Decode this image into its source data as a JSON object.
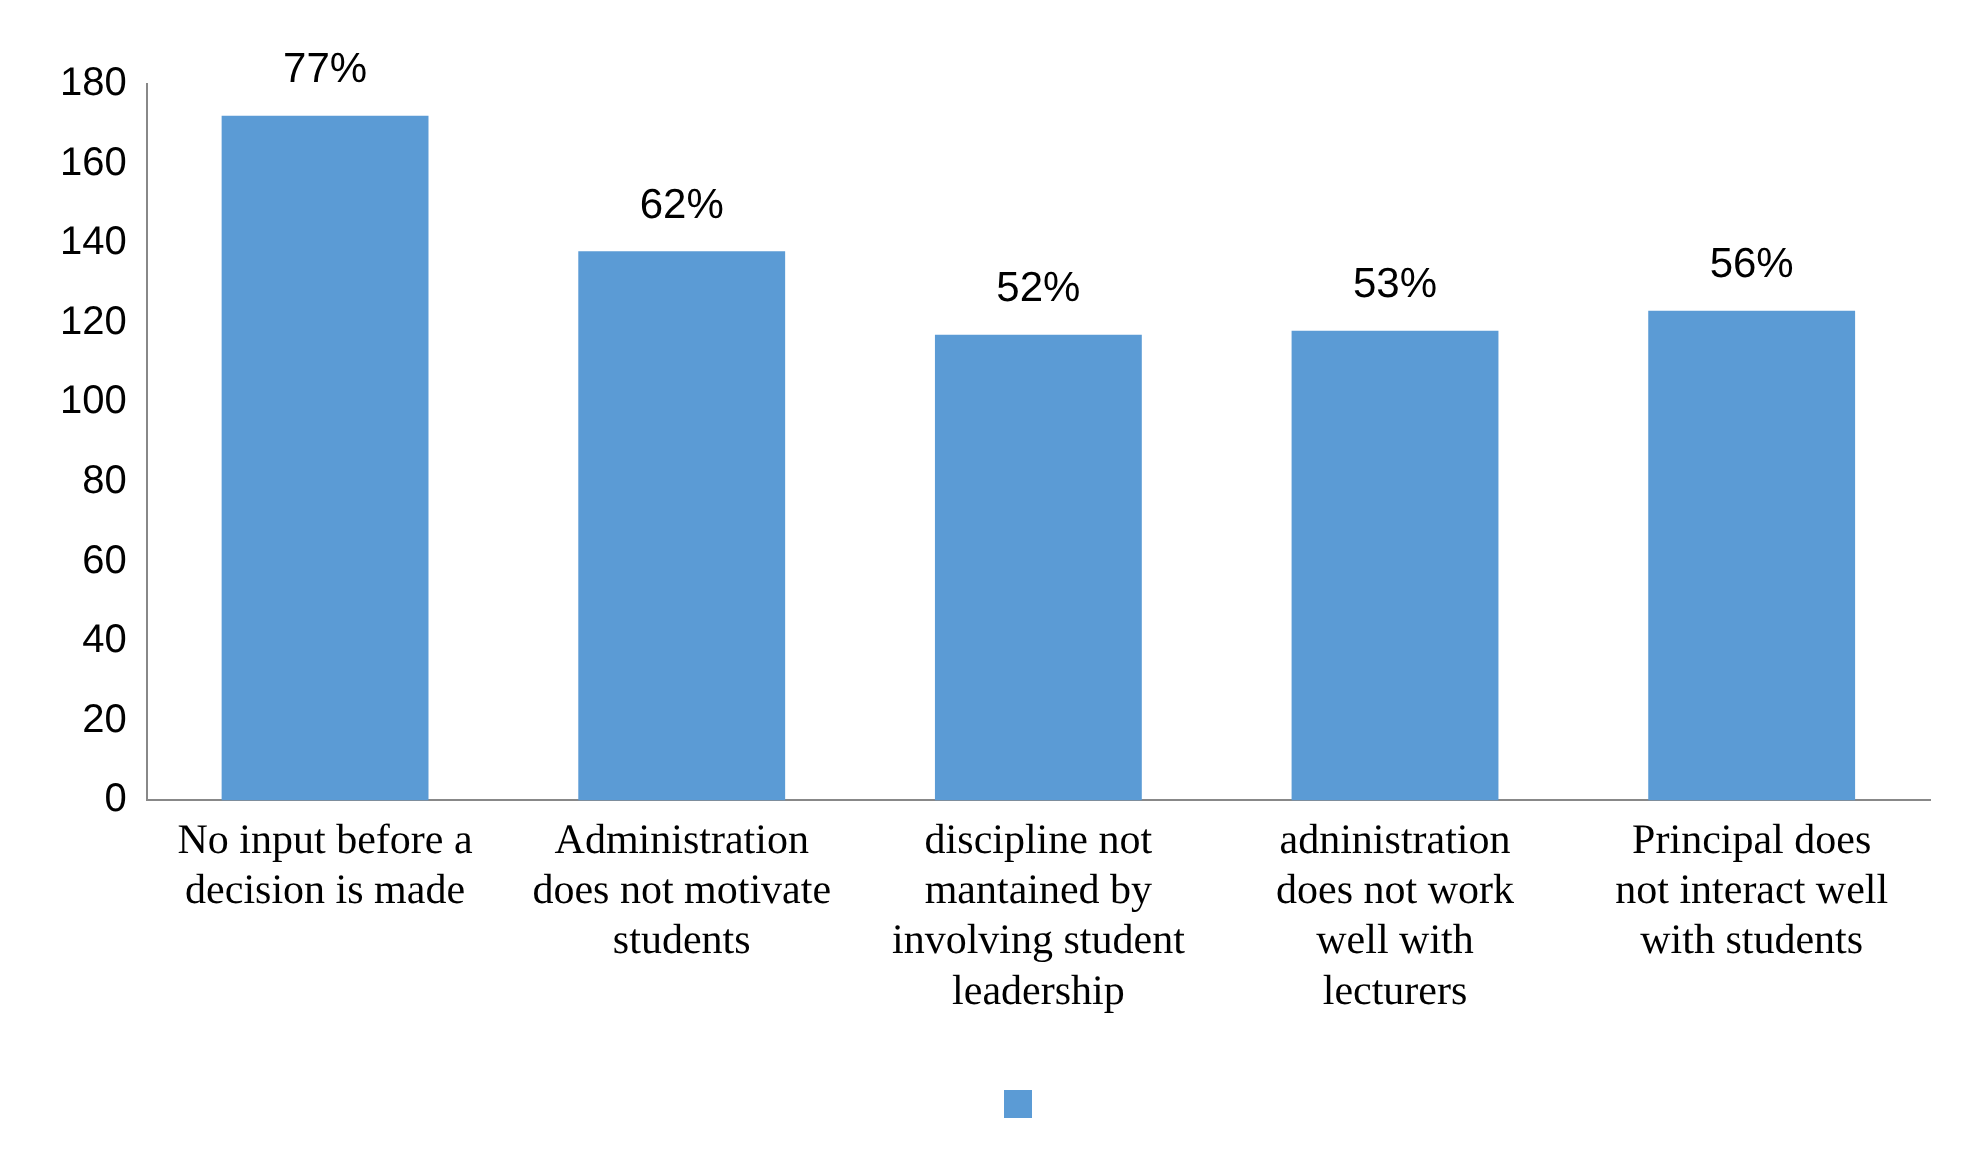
{
  "chart_data": {
    "type": "bar",
    "categories": [
      "No input before a decision is made",
      "Administration does not motivate students",
      "discipline not mantained by involving student leadership",
      "adninistration does not work well with lecturers",
      "Principal does not interact well with students"
    ],
    "series": [
      {
        "color": "#5b9bd5",
        "values": [
          172,
          138,
          117,
          118,
          123
        ]
      }
    ],
    "annotations": [
      {
        "text": "77%",
        "x": "No input before a decision is made",
        "y": 172
      },
      {
        "text": "62%",
        "x": "Administration does not motivate students",
        "y": 138
      },
      {
        "text": "52%",
        "x": "discipline not mantained by involving student leadership",
        "y": 117
      },
      {
        "text": "53%",
        "x": "adninistration does not work well with lecturers",
        "y": 118
      },
      {
        "text": "56%",
        "x": "Principal does not interact well with students",
        "y": 123
      }
    ],
    "ylim": [
      0,
      180
    ],
    "yticks": [
      0,
      20,
      40,
      60,
      80,
      100,
      120,
      140,
      160,
      180
    ],
    "grid": false
  }
}
